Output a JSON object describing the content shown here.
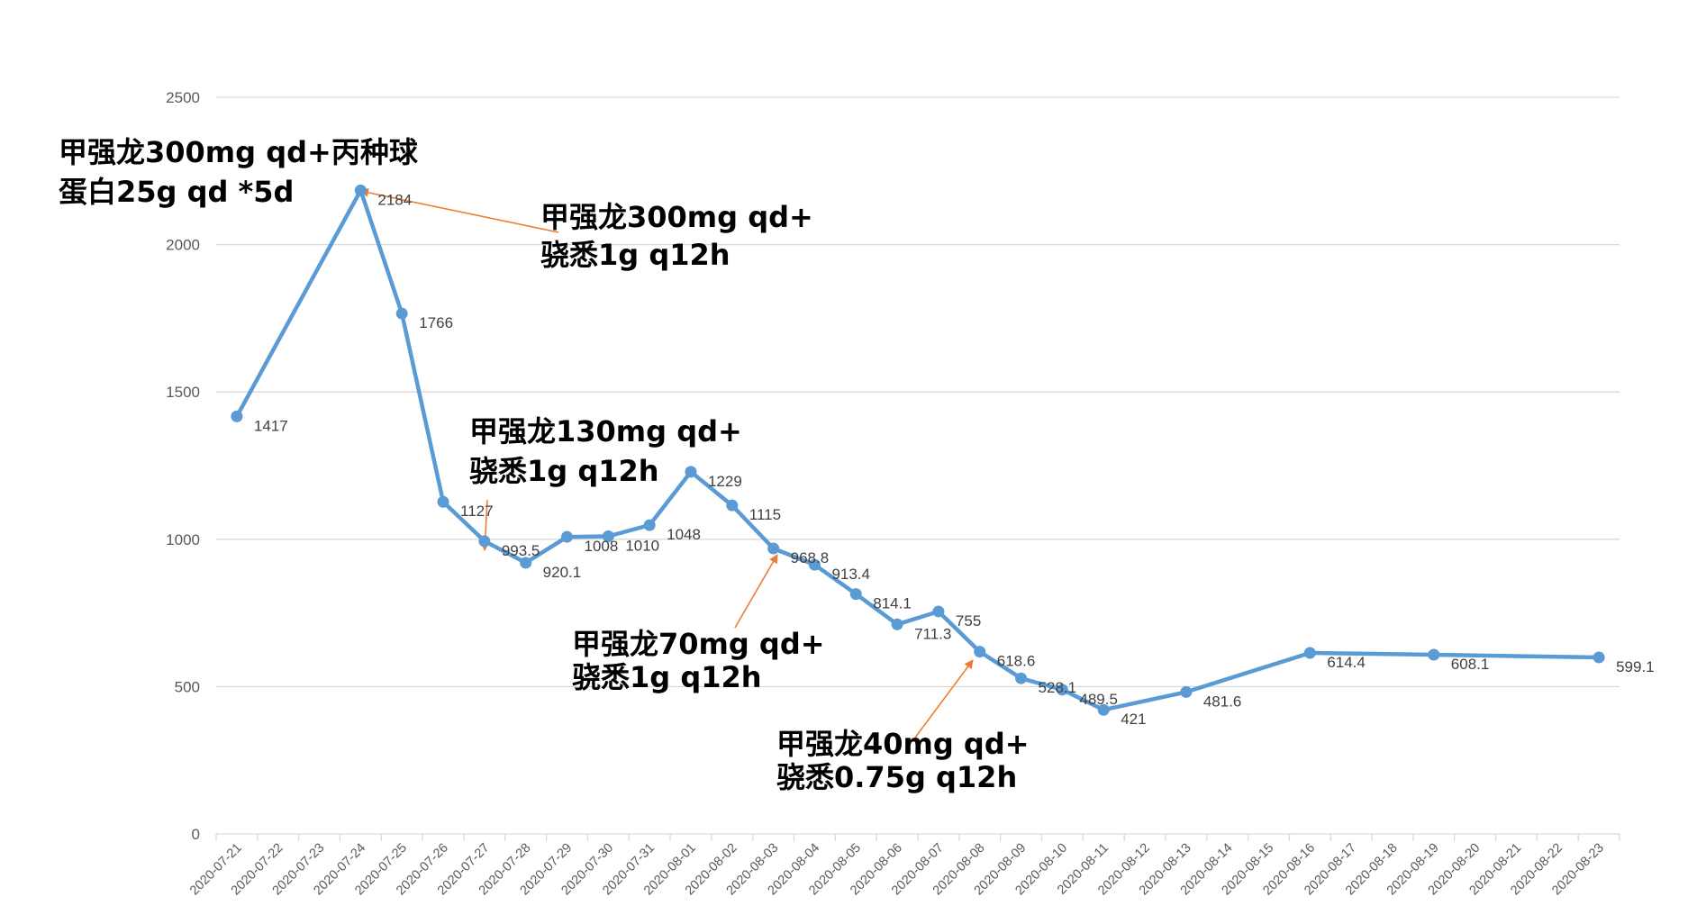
{
  "chart_data": {
    "type": "line",
    "x": [
      "2020-07-21",
      "2020-07-22",
      "2020-07-23",
      "2020-07-24",
      "2020-07-25",
      "2020-07-26",
      "2020-07-27",
      "2020-07-28",
      "2020-07-29",
      "2020-07-30",
      "2020-07-31",
      "2020-08-01",
      "2020-08-02",
      "2020-08-03",
      "2020-08-04",
      "2020-08-05",
      "2020-08-06",
      "2020-08-07",
      "2020-08-08",
      "2020-08-09",
      "2020-08-10",
      "2020-08-11",
      "2020-08-12",
      "2020-08-13",
      "2020-08-14",
      "2020-08-15",
      "2020-08-16",
      "2020-08-17",
      "2020-08-18",
      "2020-08-19",
      "2020-08-20",
      "2020-08-21",
      "2020-08-22",
      "2020-08-23"
    ],
    "points": [
      {
        "x": "2020-07-21",
        "y": 1417,
        "label": "1417"
      },
      {
        "x": "2020-07-24",
        "y": 2184,
        "label": "2184"
      },
      {
        "x": "2020-07-25",
        "y": 1766,
        "label": "1766"
      },
      {
        "x": "2020-07-26",
        "y": 1127,
        "label": "1127"
      },
      {
        "x": "2020-07-27",
        "y": 993.5,
        "label": "993.5"
      },
      {
        "x": "2020-07-28",
        "y": 920.1,
        "label": "920.1"
      },
      {
        "x": "2020-07-29",
        "y": 1008,
        "label": "1008"
      },
      {
        "x": "2020-07-30",
        "y": 1010,
        "label": "1010"
      },
      {
        "x": "2020-07-31",
        "y": 1048,
        "label": "1048"
      },
      {
        "x": "2020-08-01",
        "y": 1229,
        "label": "1229"
      },
      {
        "x": "2020-08-02",
        "y": 1115,
        "label": "1115"
      },
      {
        "x": "2020-08-03",
        "y": 968.8,
        "label": "968.8"
      },
      {
        "x": "2020-08-04",
        "y": 913.4,
        "label": "913.4"
      },
      {
        "x": "2020-08-05",
        "y": 814.1,
        "label": "814.1"
      },
      {
        "x": "2020-08-06",
        "y": 711.3,
        "label": "711.3"
      },
      {
        "x": "2020-08-07",
        "y": 755,
        "label": "755"
      },
      {
        "x": "2020-08-08",
        "y": 618.6,
        "label": "618.6"
      },
      {
        "x": "2020-08-09",
        "y": 528.1,
        "label": "528.1"
      },
      {
        "x": "2020-08-10",
        "y": 489.5,
        "label": "489.5"
      },
      {
        "x": "2020-08-11",
        "y": 421,
        "label": "421"
      },
      {
        "x": "2020-08-13",
        "y": 481.6,
        "label": "481.6"
      },
      {
        "x": "2020-08-16",
        "y": 614.4,
        "label": "614.4"
      },
      {
        "x": "2020-08-19",
        "y": 608.1,
        "label": "608.1"
      },
      {
        "x": "2020-08-23",
        "y": 599.1,
        "label": "599.1"
      }
    ],
    "yticks": [
      "0",
      "500",
      "1000",
      "1500",
      "2000",
      "2500"
    ],
    "ylim": [
      0,
      2500
    ],
    "grid": true,
    "title": "",
    "xlabel": "",
    "ylabel": "",
    "colors": {
      "series": "#5B9BD5",
      "arrow": "#ED7D31",
      "grid": "#D9D9D9"
    },
    "annotations": [
      {
        "lines": [
          "甲强龙300mg qd+丙种球",
          "蛋白25g qd *5d"
        ],
        "points_to": "2020-07-24"
      },
      {
        "lines": [
          "甲强龙300mg qd+",
          "骁悉1g q12h"
        ],
        "points_to": "2020-07-24"
      },
      {
        "lines": [
          "甲强龙130mg qd+",
          "骁悉1g q12h"
        ],
        "points_to": "2020-07-27"
      },
      {
        "lines": [
          "甲强龙70mg qd+",
          "骁悉1g q12h"
        ],
        "points_to": "2020-08-03"
      },
      {
        "lines": [
          "甲强龙40mg qd+",
          "骁悉0.75g q12h"
        ],
        "points_to": "2020-08-08"
      }
    ]
  }
}
